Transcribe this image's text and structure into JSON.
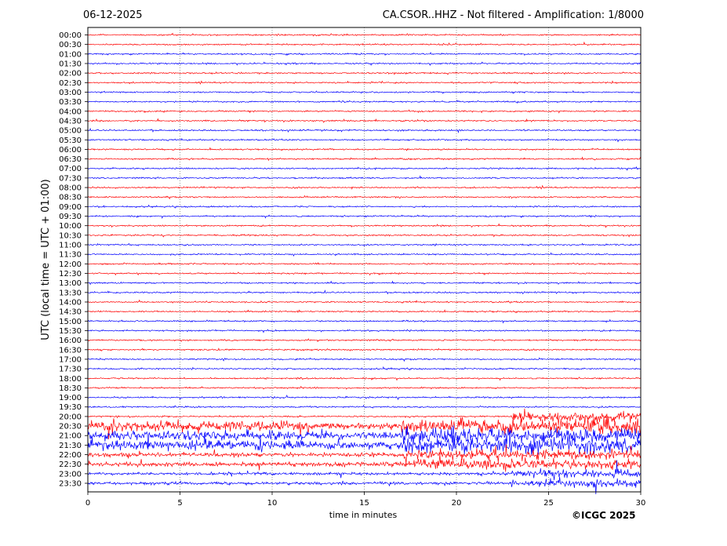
{
  "header": {
    "date": "06-12-2025",
    "title": "CA.CSOR..HHZ - Not filtered - Amplification: 1/8000"
  },
  "credit": "©ICGC 2025",
  "chart_data": {
    "type": "line",
    "xlabel": "time in minutes",
    "ylabel": "UTC (local time = UTC + 01:00)",
    "xlim": [
      0,
      30
    ],
    "x_ticks": [
      0,
      5,
      10,
      15,
      20,
      25,
      30
    ],
    "grid": "vertical dotted lines at 5-minute intervals",
    "row_labels": [
      "00:00",
      "00:30",
      "01:00",
      "01:30",
      "02:00",
      "02:30",
      "03:00",
      "03:30",
      "04:00",
      "04:30",
      "05:00",
      "05:30",
      "06:00",
      "06:30",
      "07:00",
      "07:30",
      "08:00",
      "08:30",
      "09:00",
      "09:30",
      "10:00",
      "10:30",
      "11:00",
      "11:30",
      "12:00",
      "12:30",
      "13:00",
      "13:30",
      "14:00",
      "14:30",
      "15:00",
      "15:30",
      "16:00",
      "16:30",
      "17:00",
      "17:30",
      "18:00",
      "18:30",
      "19:00",
      "19:30",
      "20:00",
      "20:30",
      "21:00",
      "21:30",
      "22:00",
      "22:30",
      "23:00",
      "23:30"
    ],
    "trace_colors": [
      "#ff0000",
      "#0000ff"
    ],
    "color_rule": "alternating red/blue per hour: red for XX:00 and XX:30 of even hours, blue for odd hours",
    "notes": "Traces are nearly flat with small oscillations; large-amplitude activity visible on 21:00-22:00 rows, with spikes increasing toward 20:00-23:30 after minute 17."
  },
  "colors": {
    "red": "#ff0000",
    "blue": "#0000ff",
    "grid": "#555555"
  }
}
